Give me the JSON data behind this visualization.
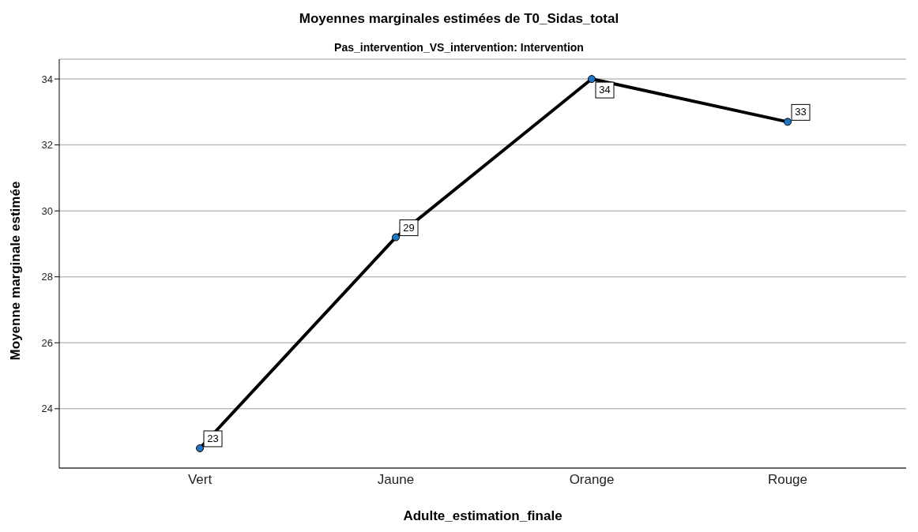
{
  "chart_data": {
    "type": "line",
    "title": "Moyennes marginales estimées de T0_Sidas_total",
    "subtitle": "Pas_intervention_VS_intervention: Intervention",
    "xlabel": "Adulte_estimation_finale",
    "ylabel": "Moyenne marginale estimée",
    "categories": [
      "Vert",
      "Jaune",
      "Orange",
      "Rouge"
    ],
    "series": [
      {
        "color": "#000000",
        "values": [
          22.8,
          29.2,
          34.0,
          32.7
        ],
        "value_labels": [
          "23",
          "29",
          "34",
          "33"
        ]
      }
    ],
    "ylim": [
      22.2,
      34.6
    ],
    "yticks": [
      24,
      26,
      28,
      30,
      32,
      34
    ],
    "grid": "y",
    "marker": "circle",
    "line_style": "solid"
  }
}
